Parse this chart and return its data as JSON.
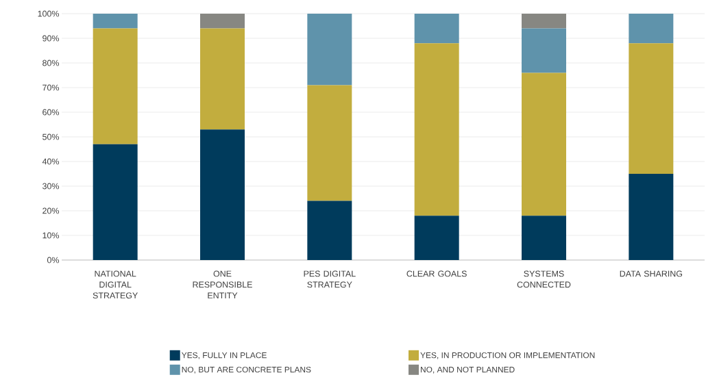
{
  "chart_data": {
    "type": "bar",
    "stacked": true,
    "categories": [
      "NATIONAL DIGITAL STRATEGY",
      "ONE RESPONSIBLE ENTITY",
      "PES DIGITAL STRATEGY",
      "CLEAR GOALS",
      "SYSTEMS CONNECTED",
      "DATA SHARING"
    ],
    "series": [
      {
        "name": "YES, FULLY IN PLACE",
        "color": "#003b5c",
        "values": [
          47,
          53,
          24,
          18,
          18,
          35
        ]
      },
      {
        "name": "YES, IN PRODUCTION OR IMPLEMENTATION",
        "color": "#c2ad3e",
        "values": [
          47,
          41,
          47,
          70,
          58,
          53
        ]
      },
      {
        "name": "NO, BUT ARE CONCRETE PLANS",
        "color": "#5f93ab",
        "values": [
          6,
          0,
          29,
          12,
          18,
          12
        ]
      },
      {
        "name": "NO, AND NOT PLANNED",
        "color": "#878782",
        "values": [
          0,
          6,
          0,
          0,
          6,
          0
        ]
      }
    ],
    "ylim": [
      0,
      100
    ],
    "yticks": [
      {
        "value": 0,
        "label": "0%"
      },
      {
        "value": 10,
        "label": "10%"
      },
      {
        "value": 20,
        "label": "20%"
      },
      {
        "value": 30,
        "label": "30%"
      },
      {
        "value": 40,
        "label": "40%"
      },
      {
        "value": 50,
        "label": "50%"
      },
      {
        "value": 60,
        "label": "60%"
      },
      {
        "value": 70,
        "label": "70%"
      },
      {
        "value": 80,
        "label": "80%"
      },
      {
        "value": 90,
        "label": "90%"
      },
      {
        "value": 100,
        "label": "100%"
      }
    ],
    "grid": "y",
    "legend": "bottom"
  }
}
